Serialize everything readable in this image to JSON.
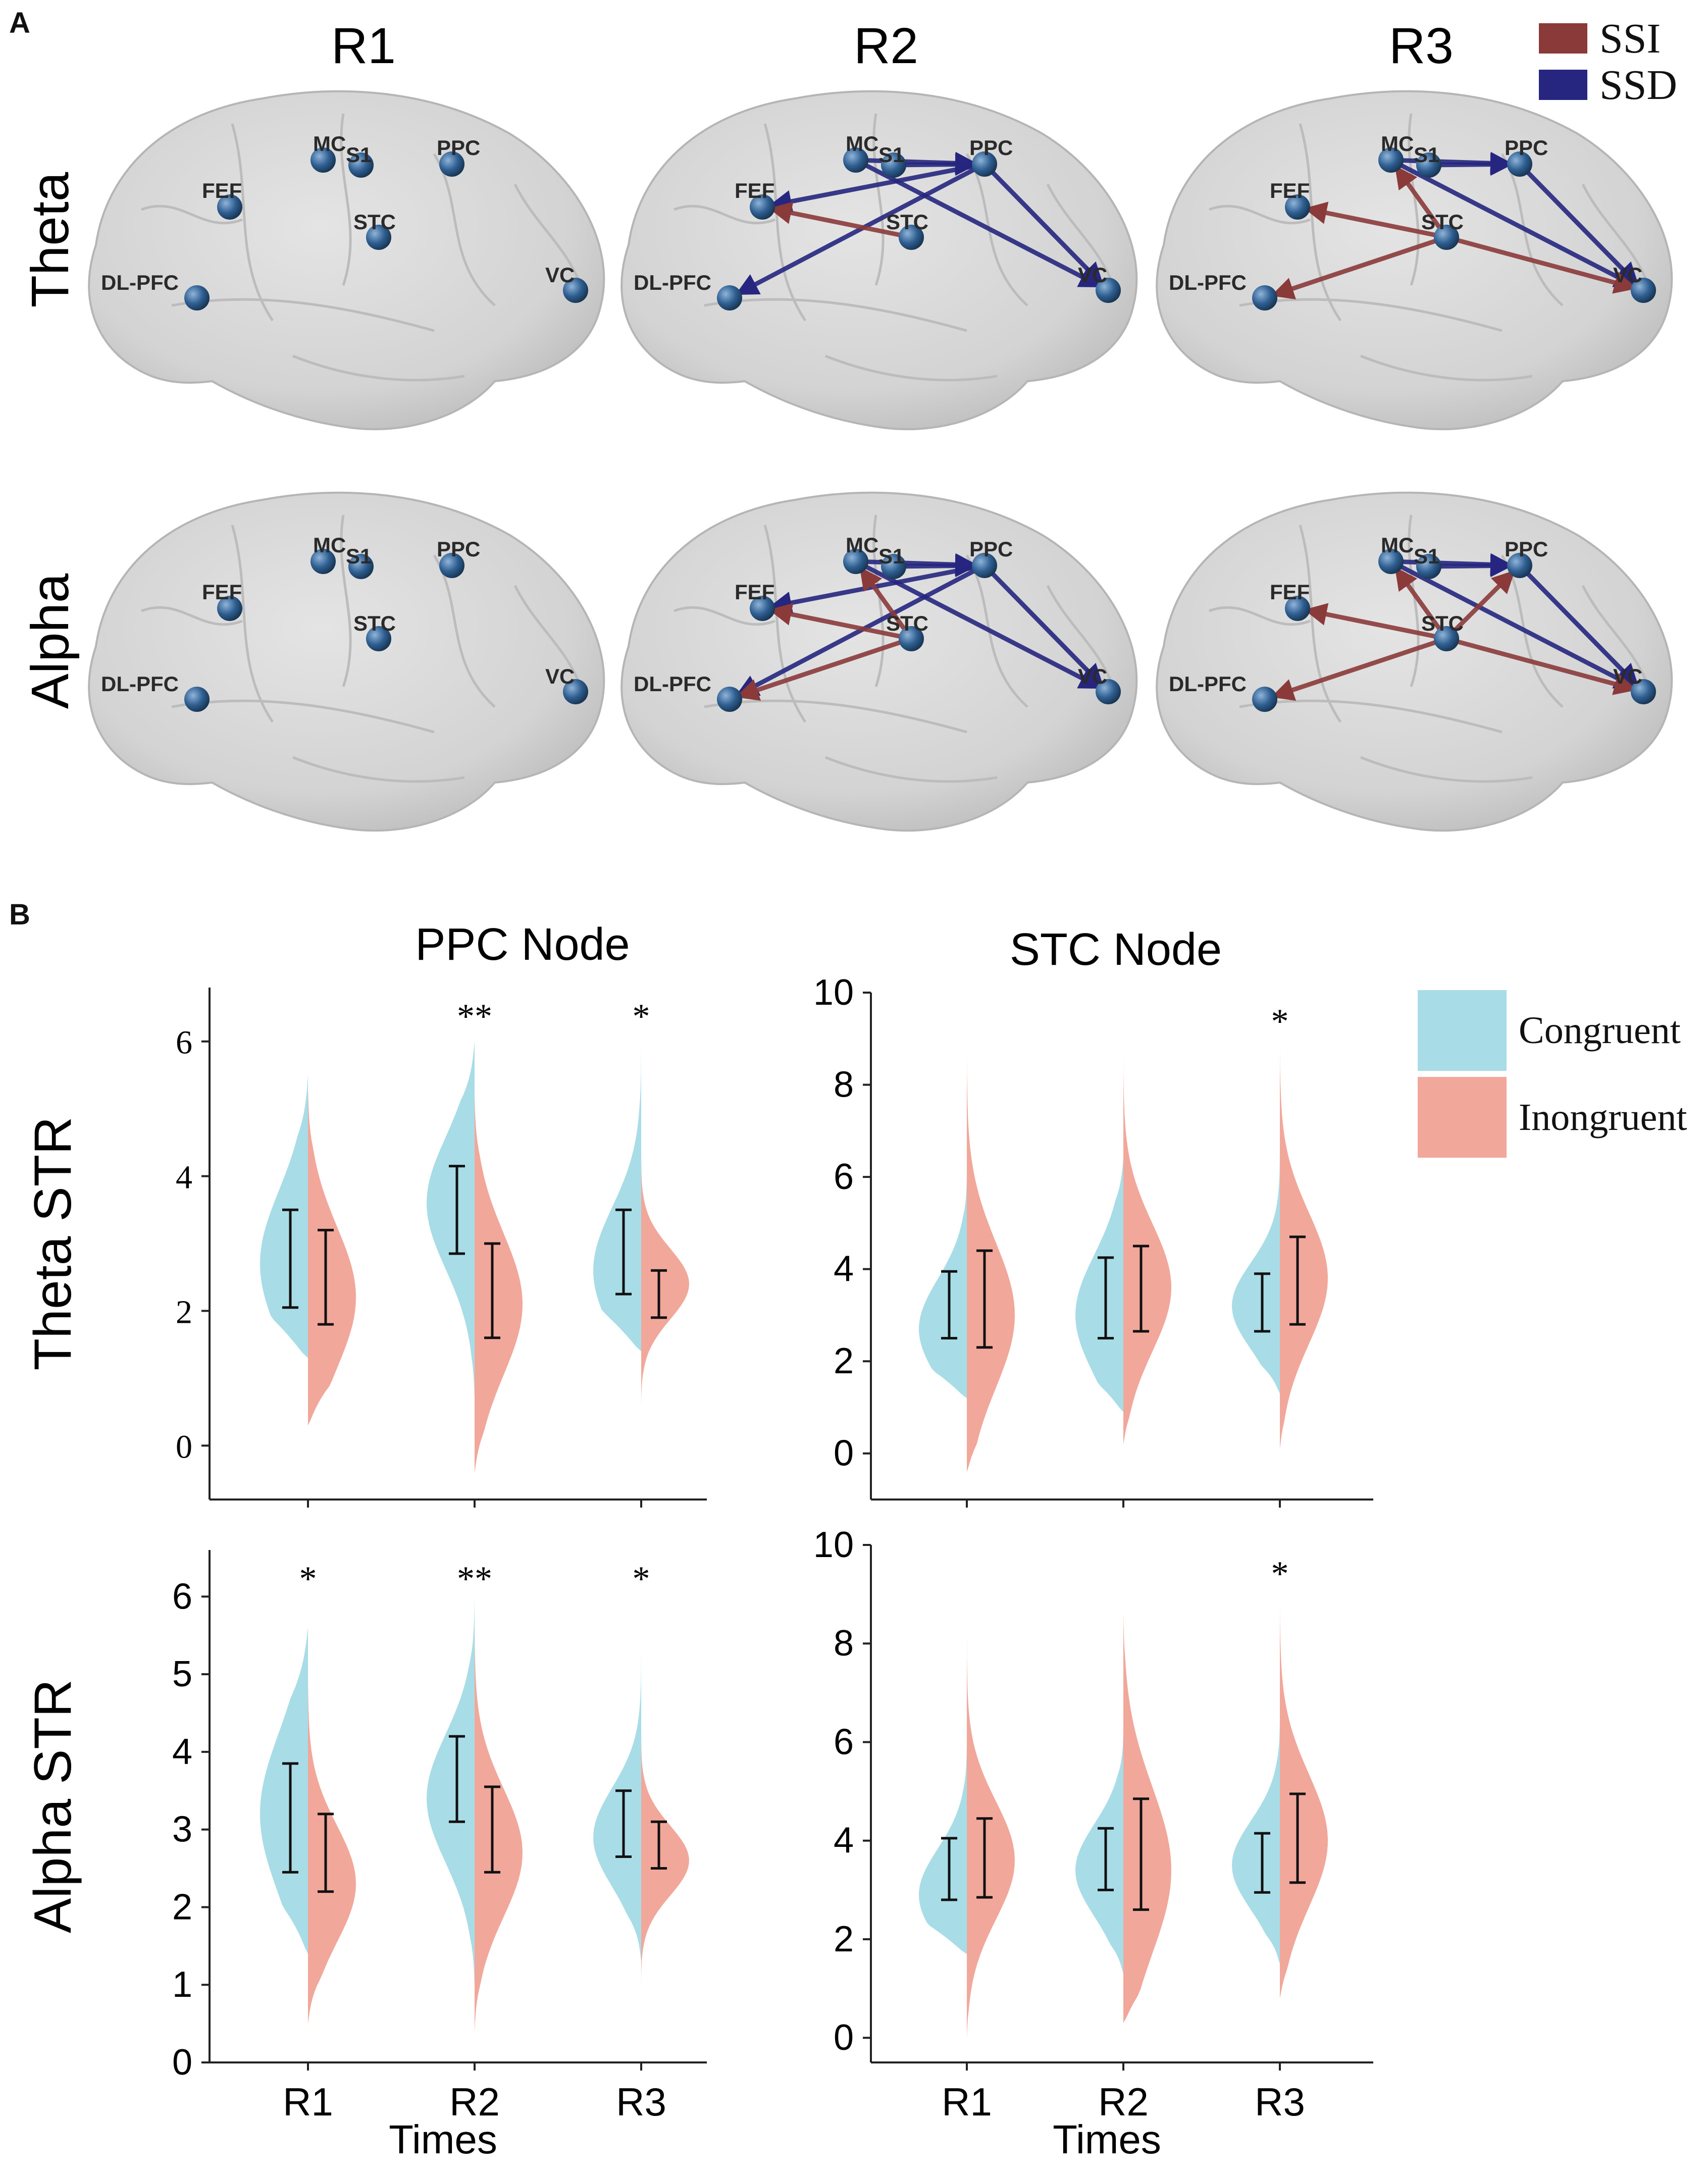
{
  "panel_labels": {
    "a": "A",
    "b": "B"
  },
  "network": {
    "columns": [
      "R1",
      "R2",
      "R3"
    ],
    "rows": [
      "Theta",
      "Alpha"
    ],
    "legend": [
      {
        "label": "SSI",
        "color": "#8b3a3a"
      },
      {
        "label": "SSD",
        "color": "#262680"
      }
    ],
    "nodes": [
      "MC",
      "S1",
      "PPC",
      "FEF",
      "STC",
      "VC",
      "DL-PFC"
    ],
    "edges": {
      "Theta": {
        "R1": [],
        "R2": [
          {
            "from": "MC",
            "to": "PPC",
            "type": "SSD"
          },
          {
            "from": "S1",
            "to": "PPC",
            "type": "SSD"
          },
          {
            "from": "PPC",
            "to": "FEF",
            "type": "SSD"
          },
          {
            "from": "PPC",
            "to": "DL-PFC",
            "type": "SSD"
          },
          {
            "from": "PPC",
            "to": "VC",
            "type": "SSD"
          },
          {
            "from": "MC",
            "to": "VC",
            "type": "SSD"
          },
          {
            "from": "STC",
            "to": "FEF",
            "type": "SSI"
          }
        ],
        "R3": [
          {
            "from": "MC",
            "to": "PPC",
            "type": "SSD"
          },
          {
            "from": "S1",
            "to": "PPC",
            "type": "SSD"
          },
          {
            "from": "MC",
            "to": "VC",
            "type": "SSD"
          },
          {
            "from": "PPC",
            "to": "VC",
            "type": "SSD"
          },
          {
            "from": "STC",
            "to": "FEF",
            "type": "SSI"
          },
          {
            "from": "STC",
            "to": "DL-PFC",
            "type": "SSI"
          },
          {
            "from": "STC",
            "to": "MC",
            "type": "SSI"
          },
          {
            "from": "STC",
            "to": "VC",
            "type": "SSI"
          }
        ]
      },
      "Alpha": {
        "R1": [],
        "R2": [
          {
            "from": "MC",
            "to": "PPC",
            "type": "SSD"
          },
          {
            "from": "S1",
            "to": "PPC",
            "type": "SSD"
          },
          {
            "from": "PPC",
            "to": "FEF",
            "type": "SSD"
          },
          {
            "from": "PPC",
            "to": "DL-PFC",
            "type": "SSD"
          },
          {
            "from": "PPC",
            "to": "VC",
            "type": "SSD"
          },
          {
            "from": "MC",
            "to": "VC",
            "type": "SSD"
          },
          {
            "from": "STC",
            "to": "FEF",
            "type": "SSI"
          },
          {
            "from": "STC",
            "to": "DL-PFC",
            "type": "SSI"
          },
          {
            "from": "STC",
            "to": "MC",
            "type": "SSI"
          }
        ],
        "R3": [
          {
            "from": "MC",
            "to": "PPC",
            "type": "SSD"
          },
          {
            "from": "S1",
            "to": "PPC",
            "type": "SSD"
          },
          {
            "from": "MC",
            "to": "VC",
            "type": "SSD"
          },
          {
            "from": "PPC",
            "to": "VC",
            "type": "SSD"
          },
          {
            "from": "STC",
            "to": "FEF",
            "type": "SSI"
          },
          {
            "from": "STC",
            "to": "DL-PFC",
            "type": "SSI"
          },
          {
            "from": "STC",
            "to": "MC",
            "type": "SSI"
          },
          {
            "from": "STC",
            "to": "VC",
            "type": "SSI"
          },
          {
            "from": "STC",
            "to": "PPC",
            "type": "SSI"
          }
        ]
      }
    }
  },
  "chart_data": {
    "type": "split-violin",
    "legend": [
      {
        "label": "Congruent",
        "color": "#a8dde8"
      },
      {
        "label": "Inongruent",
        "color": "#f2a79b"
      }
    ],
    "categories": [
      "R1",
      "R2",
      "R3"
    ],
    "xlabel": "Times",
    "panels": [
      {
        "id": "ppc-theta",
        "title": "PPC Node",
        "ylabel": "Theta STR",
        "ylim": [
          -0.8,
          6.8
        ],
        "yticks": [
          0,
          2,
          4,
          6
        ],
        "significance": [
          "",
          "**",
          "*"
        ],
        "congruent": [
          {
            "mean": 2.8,
            "lo": 2.05,
            "hi": 3.5,
            "peak": 2.7,
            "min": 1.3,
            "max": 5.5
          },
          {
            "mean": 3.5,
            "lo": 2.85,
            "hi": 4.15,
            "peak": 3.6,
            "min": 0.7,
            "max": 6.0
          },
          {
            "mean": 2.85,
            "lo": 2.25,
            "hi": 3.5,
            "peak": 2.6,
            "min": 1.4,
            "max": 6.0
          }
        ],
        "incongruent": [
          {
            "mean": 2.5,
            "lo": 1.8,
            "hi": 3.2,
            "peak": 2.2,
            "min": 0.3,
            "max": 5.3
          },
          {
            "mean": 2.3,
            "lo": 1.6,
            "hi": 3.0,
            "peak": 2.1,
            "min": -0.4,
            "max": 5.2
          },
          {
            "mean": 2.25,
            "lo": 1.9,
            "hi": 2.6,
            "peak": 2.4,
            "min": 0.5,
            "max": 4.6
          }
        ]
      },
      {
        "id": "stc-theta",
        "title": "STC Node",
        "ylabel": "",
        "ylim": [
          -1.0,
          10.0
        ],
        "yticks": [
          0,
          2,
          4,
          6,
          8,
          10
        ],
        "significance": [
          "",
          "",
          "*"
        ],
        "congruent": [
          {
            "mean": 3.2,
            "lo": 2.5,
            "hi": 3.95,
            "peak": 2.7,
            "min": 1.2,
            "max": 6.0
          },
          {
            "mean": 3.35,
            "lo": 2.5,
            "hi": 4.25,
            "peak": 3.0,
            "min": 0.9,
            "max": 6.4
          },
          {
            "mean": 3.3,
            "lo": 2.65,
            "hi": 3.9,
            "peak": 3.2,
            "min": 1.3,
            "max": 6.6
          }
        ],
        "incongruent": [
          {
            "mean": 3.35,
            "lo": 2.3,
            "hi": 4.4,
            "peak": 3.0,
            "min": -0.4,
            "max": 8.8
          },
          {
            "mean": 3.6,
            "lo": 2.65,
            "hi": 4.5,
            "peak": 3.6,
            "min": 0.2,
            "max": 8.6
          },
          {
            "mean": 3.75,
            "lo": 2.8,
            "hi": 4.7,
            "peak": 3.8,
            "min": 0.1,
            "max": 8.8
          }
        ]
      },
      {
        "id": "ppc-alpha",
        "title": "",
        "ylabel": "Alpha STR",
        "ylim": [
          0,
          6.6
        ],
        "yticks": [
          0,
          1,
          2,
          3,
          4,
          5,
          6
        ],
        "significance": [
          "*",
          "**",
          "*"
        ],
        "congruent": [
          {
            "mean": 3.15,
            "lo": 2.45,
            "hi": 3.85,
            "peak": 3.2,
            "min": 1.4,
            "max": 5.6
          },
          {
            "mean": 3.65,
            "lo": 3.1,
            "hi": 4.2,
            "peak": 3.4,
            "min": 1.0,
            "max": 6.0
          },
          {
            "mean": 3.05,
            "lo": 2.65,
            "hi": 3.5,
            "peak": 2.9,
            "min": 1.3,
            "max": 5.6
          }
        ],
        "incongruent": [
          {
            "mean": 2.7,
            "lo": 2.2,
            "hi": 3.2,
            "peak": 2.3,
            "min": 0.5,
            "max": 5.4
          },
          {
            "mean": 3.0,
            "lo": 2.45,
            "hi": 3.55,
            "peak": 2.7,
            "min": 0.4,
            "max": 6.0
          },
          {
            "mean": 2.8,
            "lo": 2.5,
            "hi": 3.1,
            "peak": 2.6,
            "min": 0.9,
            "max": 4.6
          }
        ]
      },
      {
        "id": "stc-alpha",
        "title": "",
        "ylabel": "",
        "ylim": [
          -0.5,
          10.0
        ],
        "yticks": [
          0,
          2,
          4,
          6,
          8,
          10
        ],
        "significance": [
          "",
          "",
          "*"
        ],
        "congruent": [
          {
            "mean": 3.4,
            "lo": 2.8,
            "hi": 4.05,
            "peak": 2.9,
            "min": 1.7,
            "max": 6.0
          },
          {
            "mean": 3.6,
            "lo": 3.0,
            "hi": 4.25,
            "peak": 3.4,
            "min": 1.3,
            "max": 6.2
          },
          {
            "mean": 3.55,
            "lo": 2.95,
            "hi": 4.15,
            "peak": 3.5,
            "min": 1.5,
            "max": 6.5
          }
        ],
        "incongruent": [
          {
            "mean": 3.65,
            "lo": 2.85,
            "hi": 4.45,
            "peak": 3.6,
            "min": 0.0,
            "max": 8.4
          },
          {
            "mean": 3.7,
            "lo": 2.6,
            "hi": 4.85,
            "peak": 3.4,
            "min": 0.3,
            "max": 8.6
          },
          {
            "mean": 4.05,
            "lo": 3.15,
            "hi": 4.95,
            "peak": 4.0,
            "min": 0.8,
            "max": 8.9
          }
        ]
      }
    ]
  }
}
